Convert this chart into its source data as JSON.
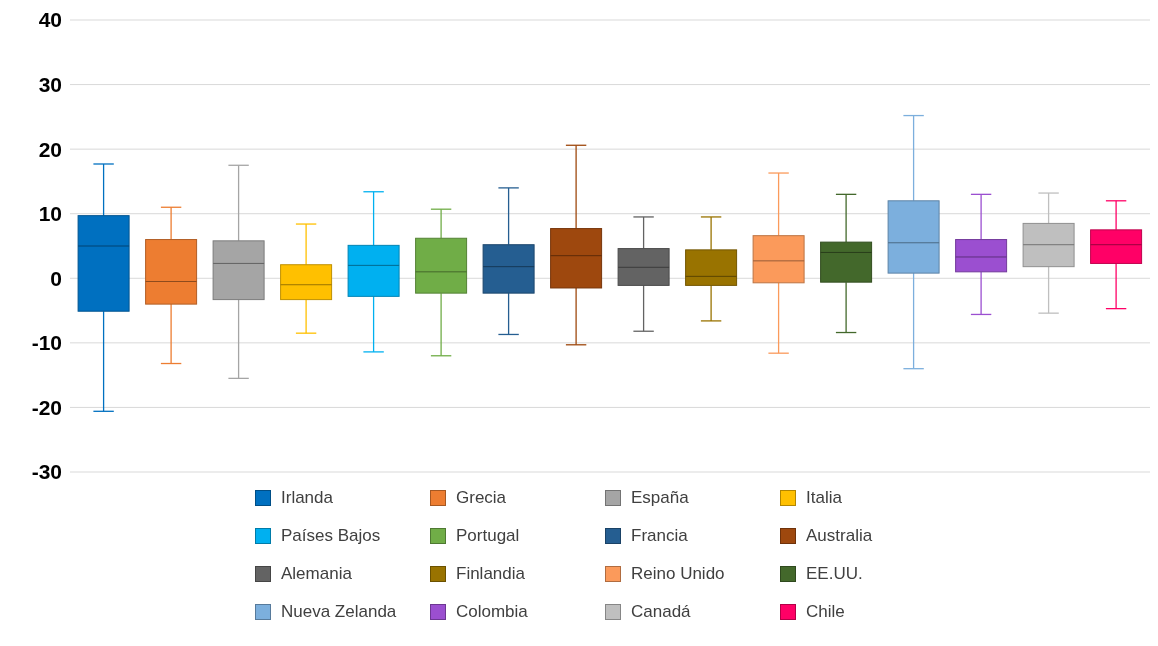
{
  "chart_data": {
    "type": "box",
    "categories": [
      null
    ],
    "ylim": [
      -30,
      40
    ],
    "yticks": [
      -30,
      -20,
      -10,
      0,
      10,
      20,
      30,
      40
    ],
    "grid": "y",
    "legend": "bottom",
    "series": [
      {
        "name": "Irlanda",
        "color": "#0070c0",
        "boxes": [
          {
            "low": -20.6,
            "q1": -5.1,
            "median": 5,
            "q3": 9.7,
            "high": 17.7
          }
        ]
      },
      {
        "name": "Grecia",
        "color": "#ed7d31",
        "boxes": [
          {
            "low": -13.2,
            "q1": -4,
            "median": -0.5,
            "q3": 6,
            "high": 11
          }
        ]
      },
      {
        "name": "España",
        "color": "#a5a5a5",
        "boxes": [
          {
            "low": -15.5,
            "q1": -3.3,
            "median": 2.3,
            "q3": 5.8,
            "high": 17.5
          }
        ]
      },
      {
        "name": "Italia",
        "color": "#ffc000",
        "boxes": [
          {
            "low": -8.5,
            "q1": -3.3,
            "median": -1,
            "q3": 2.1,
            "high": 8.4
          }
        ]
      },
      {
        "name": "Países Bajos",
        "color": "#00b0f0",
        "boxes": [
          {
            "low": -11.4,
            "q1": -2.8,
            "median": 2,
            "q3": 5.1,
            "high": 13.4
          }
        ]
      },
      {
        "name": "Portugal",
        "color": "#70ad47",
        "boxes": [
          {
            "low": -12,
            "q1": -2.3,
            "median": 1,
            "q3": 6.2,
            "high": 10.7
          }
        ]
      },
      {
        "name": "Francia",
        "color": "#255e91",
        "boxes": [
          {
            "low": -8.7,
            "q1": -2.3,
            "median": 1.8,
            "q3": 5.2,
            "high": 14
          }
        ]
      },
      {
        "name": "Australia",
        "color": "#9e480e",
        "boxes": [
          {
            "low": -10.3,
            "q1": -1.5,
            "median": 3.5,
            "q3": 7.7,
            "high": 20.6
          }
        ]
      },
      {
        "name": "Alemania",
        "color": "#636363",
        "boxes": [
          {
            "low": -8.2,
            "q1": -1.1,
            "median": 1.7,
            "q3": 4.6,
            "high": 9.5
          }
        ]
      },
      {
        "name": "Finlandia",
        "color": "#997300",
        "boxes": [
          {
            "low": -6.6,
            "q1": -1.1,
            "median": 0.3,
            "q3": 4.4,
            "high": 9.5
          }
        ]
      },
      {
        "name": "Reino Unido",
        "color": "#fb9a5b",
        "boxes": [
          {
            "low": -11.6,
            "q1": -0.7,
            "median": 2.7,
            "q3": 6.6,
            "high": 16.3
          }
        ]
      },
      {
        "name": "EE.UU.",
        "color": "#43682b",
        "boxes": [
          {
            "low": -8.4,
            "q1": -0.6,
            "median": 4,
            "q3": 5.6,
            "high": 13
          }
        ]
      },
      {
        "name": "Nueva Zelanda",
        "color": "#7cafdd",
        "boxes": [
          {
            "low": -14,
            "q1": 0.8,
            "median": 5.5,
            "q3": 12,
            "high": 25.2
          }
        ]
      },
      {
        "name": "Colombia",
        "color": "#9b4fd0",
        "boxes": [
          {
            "low": -5.6,
            "q1": 1,
            "median": 3.3,
            "q3": 6,
            "high": 13
          }
        ]
      },
      {
        "name": "Canadá",
        "color": "#bfbfbf",
        "boxes": [
          {
            "low": -5.4,
            "q1": 1.8,
            "median": 5.2,
            "q3": 8.5,
            "high": 13.2
          }
        ]
      },
      {
        "name": "Chile",
        "color": "#ff0066",
        "boxes": [
          {
            "low": -4.7,
            "q1": 2.3,
            "median": 5.2,
            "q3": 7.5,
            "high": 12
          }
        ]
      }
    ]
  }
}
